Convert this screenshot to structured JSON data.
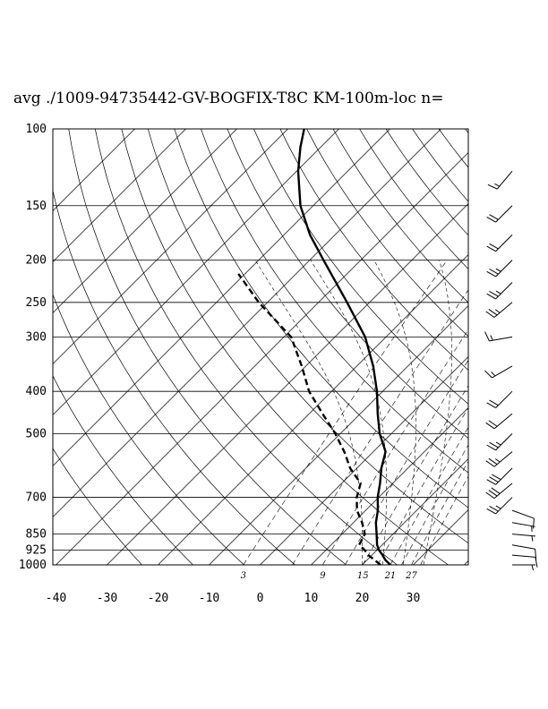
{
  "chart_data": {
    "type": "skew-t",
    "title": "avg ./1009-94735442-GV-BOGFIX-T8C KM-100m-loc n=",
    "pressure_levels": [
      "100",
      "150",
      "200",
      "250",
      "300",
      "400",
      "500",
      "700",
      "850",
      "925",
      "1000"
    ],
    "temperature_ticks": [
      "-40",
      "-30",
      "-20",
      "-10",
      "0",
      "10",
      "20",
      "30"
    ],
    "mixing_ratio_labels": [
      "3",
      "9",
      "15",
      "21",
      "27"
    ],
    "ylim": [
      1000,
      100
    ],
    "xlim_at_1000hPa": [
      -40,
      40
    ],
    "temperature_profile": [
      {
        "p": 1000,
        "t": 25.5
      },
      {
        "p": 975,
        "t": 23.6
      },
      {
        "p": 950,
        "t": 22.1
      },
      {
        "p": 925,
        "t": 20.4
      },
      {
        "p": 900,
        "t": 19.0
      },
      {
        "p": 850,
        "t": 16.8
      },
      {
        "p": 800,
        "t": 14.4
      },
      {
        "p": 750,
        "t": 12.4
      },
      {
        "p": 700,
        "t": 9.8
      },
      {
        "p": 650,
        "t": 7.5
      },
      {
        "p": 600,
        "t": 4.8
      },
      {
        "p": 550,
        "t": 2.4
      },
      {
        "p": 500,
        "t": -2.3
      },
      {
        "p": 450,
        "t": -6.6
      },
      {
        "p": 400,
        "t": -11.1
      },
      {
        "p": 350,
        "t": -16.8
      },
      {
        "p": 300,
        "t": -24.1
      },
      {
        "p": 250,
        "t": -34.4
      },
      {
        "p": 200,
        "t": -47.3
      },
      {
        "p": 175,
        "t": -54.9
      },
      {
        "p": 150,
        "t": -62.5
      },
      {
        "p": 125,
        "t": -69.7
      },
      {
        "p": 110,
        "t": -74.0
      },
      {
        "p": 100,
        "t": -76.8
      }
    ],
    "dewpoint_profile": [
      {
        "p": 1000,
        "td": 23.6
      },
      {
        "p": 975,
        "td": 21.5
      },
      {
        "p": 950,
        "td": 19.3
      },
      {
        "p": 925,
        "td": 17.6
      },
      {
        "p": 900,
        "td": 15.5
      },
      {
        "p": 850,
        "td": 14.5
      },
      {
        "p": 800,
        "td": 11.7
      },
      {
        "p": 750,
        "td": 8.3
      },
      {
        "p": 700,
        "td": 5.7
      },
      {
        "p": 650,
        "td": 3.7
      },
      {
        "p": 600,
        "td": -1.3
      },
      {
        "p": 550,
        "td": -5.7
      },
      {
        "p": 500,
        "td": -11.0
      },
      {
        "p": 450,
        "td": -17.4
      },
      {
        "p": 400,
        "td": -24.4
      },
      {
        "p": 350,
        "td": -30.8
      },
      {
        "p": 300,
        "td": -38.6
      },
      {
        "p": 250,
        "td": -51.7
      },
      {
        "p": 215,
        "td": -61.3
      }
    ],
    "wind_barbs": [
      {
        "p": 1000,
        "dir": 90,
        "spd": 5
      },
      {
        "p": 950,
        "dir": 95,
        "spd": 10
      },
      {
        "p": 900,
        "dir": 100,
        "spd": 10
      },
      {
        "p": 850,
        "dir": 95,
        "spd": 5
      },
      {
        "p": 800,
        "dir": 100,
        "spd": 5
      },
      {
        "p": 750,
        "dir": 110,
        "spd": 10
      },
      {
        "p": 700,
        "dir": 225,
        "spd": 25
      },
      {
        "p": 650,
        "dir": 230,
        "spd": 30
      },
      {
        "p": 600,
        "dir": 225,
        "spd": 30
      },
      {
        "p": 550,
        "dir": 230,
        "spd": 25
      },
      {
        "p": 500,
        "dir": 225,
        "spd": 25
      },
      {
        "p": 450,
        "dir": 230,
        "spd": 20
      },
      {
        "p": 400,
        "dir": 225,
        "spd": 20
      },
      {
        "p": 350,
        "dir": 240,
        "spd": 15
      },
      {
        "p": 300,
        "dir": 260,
        "spd": 15
      },
      {
        "p": 250,
        "dir": 230,
        "spd": 25
      },
      {
        "p": 225,
        "dir": 225,
        "spd": 25
      },
      {
        "p": 200,
        "dir": 225,
        "spd": 25
      },
      {
        "p": 175,
        "dir": 225,
        "spd": 20
      },
      {
        "p": 150,
        "dir": 225,
        "spd": 20
      },
      {
        "p": 125,
        "dir": 220,
        "spd": 15
      }
    ]
  }
}
